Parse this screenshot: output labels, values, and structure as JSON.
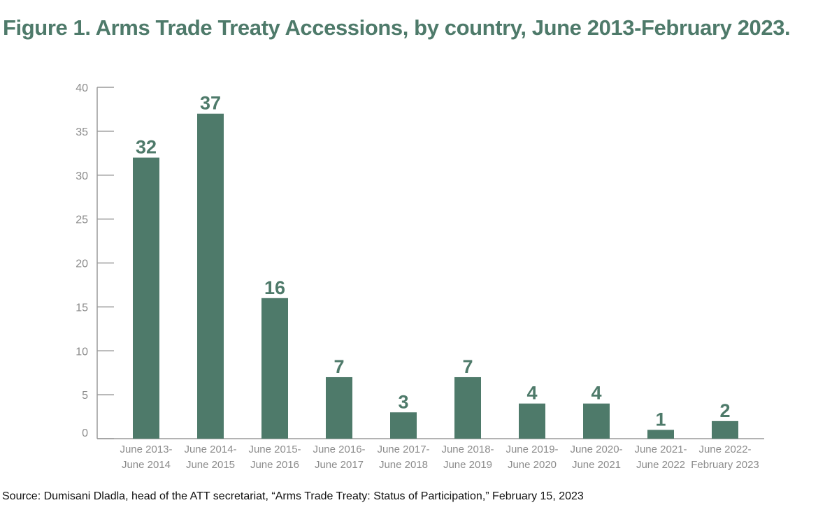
{
  "title": "Figure 1. Arms Trade Treaty Accessions, by country, June 2013-February 2023.",
  "source": "Source: Dumisani Dladla, head of the ATT secretariat, “Arms Trade Treaty: Status of Participation,” February 15, 2023",
  "colors": {
    "bar": "#4e7a6a",
    "title": "#4e7a6a",
    "axis": "#9a9a9a",
    "tick_text": "#8c8c8c"
  },
  "chart_data": {
    "type": "bar",
    "title": "Figure 1. Arms Trade Treaty Accessions, by country, June 2013-February 2023.",
    "xlabel": "",
    "ylabel": "",
    "ylim": [
      0,
      40
    ],
    "yticks": [
      0,
      5,
      10,
      15,
      20,
      25,
      30,
      35,
      40
    ],
    "grid": false,
    "categories": [
      [
        "June 2013-",
        "June 2014"
      ],
      [
        "June 2014-",
        "June 2015"
      ],
      [
        "June 2015-",
        "June 2016"
      ],
      [
        "June 2016-",
        "June 2017"
      ],
      [
        "June 2017-",
        "June 2018"
      ],
      [
        "June 2018-",
        "June 2019"
      ],
      [
        "June 2019-",
        "June 2020"
      ],
      [
        "June 2020-",
        "June 2021"
      ],
      [
        "June 2021-",
        "June 2022"
      ],
      [
        "June 2022-",
        "February 2023"
      ]
    ],
    "values": [
      32,
      37,
      16,
      7,
      3,
      7,
      4,
      4,
      1,
      2
    ]
  }
}
